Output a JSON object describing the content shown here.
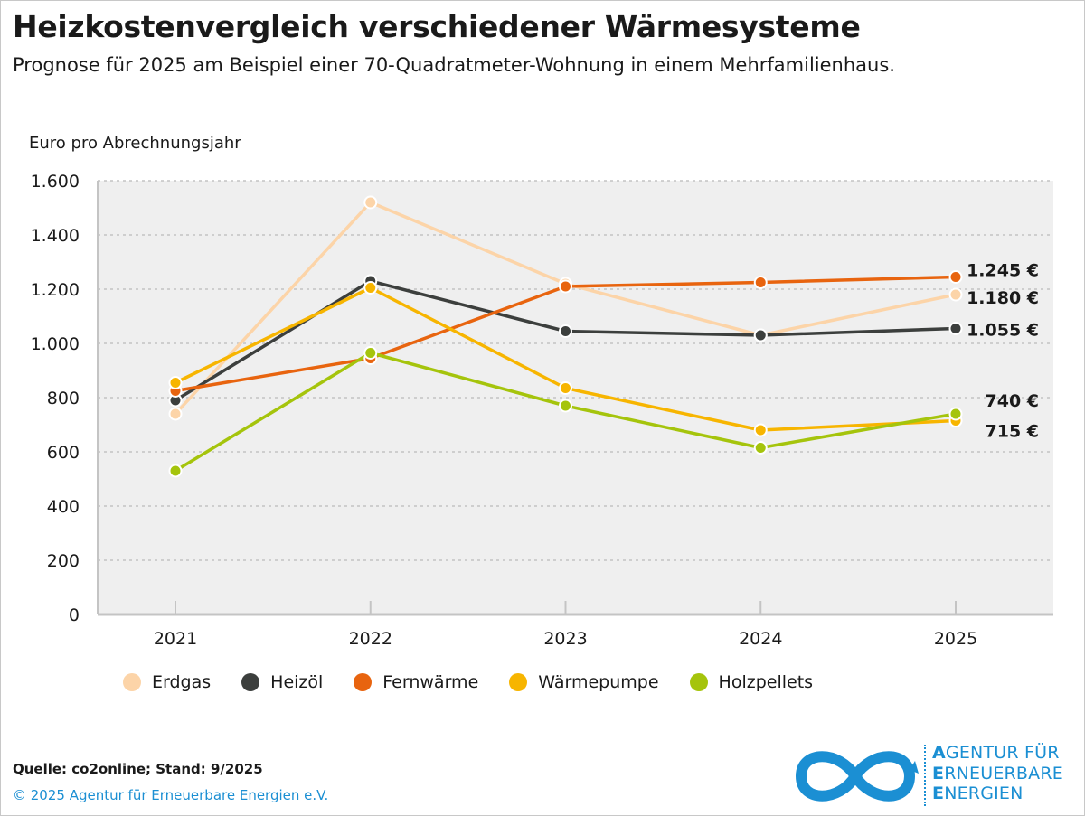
{
  "title": "Heizkostenvergleich verschiedener Wärmesysteme",
  "subtitle": "Prognose für 2025 am Beispiel einer 70-Quadratmeter-Wohnung in einem Mehrfamilienhaus.",
  "source": "Quelle: co2online; Stand: 9/2025",
  "copyright": "© 2025 Agentur für Erneuerbare Energien e.V.",
  "logo": {
    "line1_initial": "A",
    "line1_rest": "GENTUR FÜR",
    "line2_initial": "E",
    "line2_rest": "RNEUERBARE",
    "line3_initial": "E",
    "line3_rest": "NERGIEN",
    "color": "#1b8fd3"
  },
  "chart_data": {
    "type": "line",
    "ylabel": "Euro pro Abrechnungsjahr",
    "x": [
      "2021",
      "2022",
      "2023",
      "2024",
      "2025"
    ],
    "ylim": [
      0,
      1600
    ],
    "yticks": [
      0,
      200,
      400,
      600,
      800,
      1000,
      1200,
      1400,
      1600
    ],
    "ytick_labels": [
      "0",
      "200",
      "400",
      "600",
      "800",
      "1.000",
      "1.200",
      "1.400",
      "1.600"
    ],
    "grid": true,
    "background": "#efefef",
    "legend_placement": "bottom",
    "series": [
      {
        "name": "Erdgas",
        "color": "#fcd4a8",
        "values": [
          740,
          1520,
          1220,
          1030,
          1180
        ]
      },
      {
        "name": "Heizöl",
        "color": "#3c3f3d",
        "values": [
          790,
          1230,
          1045,
          1030,
          1055
        ]
      },
      {
        "name": "Fernwärme",
        "color": "#e8640f",
        "values": [
          825,
          945,
          1210,
          1225,
          1245
        ]
      },
      {
        "name": "Wärmepumpe",
        "color": "#f7b500",
        "values": [
          855,
          1205,
          835,
          680,
          715
        ]
      },
      {
        "name": "Holzpellets",
        "color": "#a5c40c",
        "values": [
          530,
          965,
          770,
          615,
          740
        ]
      }
    ],
    "end_labels": [
      {
        "text": "1.245 €",
        "value": 1245
      },
      {
        "text": "1.180 €",
        "value": 1180
      },
      {
        "text": "1.055 €",
        "value": 1055
      },
      {
        "text": "740 €",
        "value": 740
      },
      {
        "text": "715 €",
        "value": 715
      }
    ]
  }
}
